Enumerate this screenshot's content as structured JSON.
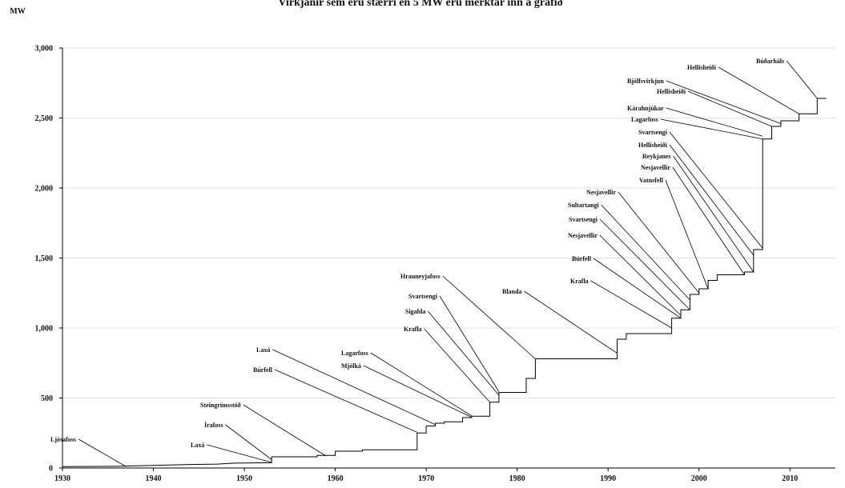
{
  "chart_data": {
    "type": "line",
    "title": "Virkjanir sem eru stærri en 5 MW eru merktar inn á grafið",
    "ylabel": "MW",
    "xlim": [
      1930,
      2015
    ],
    "ylim": [
      0,
      3000
    ],
    "x_ticks": [
      1930,
      1940,
      1950,
      1960,
      1970,
      1980,
      1990,
      2000,
      2010
    ],
    "y_ticks": [
      0,
      500,
      1000,
      1500,
      2000,
      2500,
      3000
    ],
    "y_tick_labels": [
      "0",
      "500",
      "1,000",
      "1,500",
      "2,000",
      "2,500",
      "3,000"
    ],
    "grid": "horizontal",
    "legend": "none",
    "series": [
      {
        "x": [
          1930,
          1936,
          1944,
          1947,
          1949,
          1953,
          1953,
          1958,
          1958,
          1960,
          1960,
          1963,
          1963,
          1969,
          1969,
          1970,
          1970,
          1971,
          1971,
          1972,
          1972,
          1974,
          1974,
          1975,
          1975,
          1977,
          1977,
          1978,
          1978,
          1981,
          1981,
          1982,
          1982,
          1991,
          1991,
          1992,
          1992,
          1997,
          1997,
          1998,
          1998,
          1999,
          1999,
          2000,
          2000,
          2001,
          2001,
          2002,
          2002,
          2005,
          2005,
          2006,
          2006,
          2007,
          2007,
          2008,
          2008,
          2009,
          2009,
          2011,
          2011,
          2013,
          2013,
          2014
        ],
        "y": [
          10,
          12,
          25,
          28,
          35,
          38,
          80,
          80,
          90,
          90,
          120,
          120,
          130,
          130,
          250,
          250,
          300,
          300,
          320,
          320,
          330,
          330,
          360,
          360,
          370,
          370,
          470,
          470,
          540,
          540,
          640,
          640,
          780,
          780,
          920,
          920,
          960,
          960,
          1070,
          1070,
          1130,
          1130,
          1240,
          1240,
          1280,
          1280,
          1340,
          1340,
          1380,
          1380,
          1400,
          1400,
          1560,
          1560,
          2350,
          2350,
          2440,
          2440,
          2480,
          2480,
          2530,
          2530,
          2640,
          2640
        ]
      }
    ],
    "annotations": [
      {
        "label": "Ljósafoss",
        "x": 1937,
        "y": 10
      },
      {
        "label": "Laxá",
        "x": 1953,
        "y": 40
      },
      {
        "label": "Írafoss",
        "x": 1953,
        "y": 60
      },
      {
        "label": "Steingrímsstöð",
        "x": 1959,
        "y": 85
      },
      {
        "label": "Búrfell",
        "x": 1969,
        "y": 255
      },
      {
        "label": "Laxá",
        "x": 1971,
        "y": 310
      },
      {
        "label": "Mjólká",
        "x": 1975,
        "y": 362
      },
      {
        "label": "Lagarfoss",
        "x": 1975,
        "y": 372
      },
      {
        "label": "Krafla",
        "x": 1977,
        "y": 470
      },
      {
        "label": "Sigalda",
        "x": 1978,
        "y": 520
      },
      {
        "label": "Svartsengi",
        "x": 1978,
        "y": 545
      },
      {
        "label": "Hrauneyjafoss",
        "x": 1982,
        "y": 780
      },
      {
        "label": "Blanda",
        "x": 1991,
        "y": 820
      },
      {
        "label": "Krafla",
        "x": 1997,
        "y": 1000
      },
      {
        "label": "Búrfell",
        "x": 1998,
        "y": 1070
      },
      {
        "label": "Nesjavellir",
        "x": 1998,
        "y": 1090
      },
      {
        "label": "Svartsengi",
        "x": 1999,
        "y": 1130
      },
      {
        "label": "Sultartangi",
        "x": 1999,
        "y": 1200
      },
      {
        "label": "Nesjavellir",
        "x": 2000,
        "y": 1250
      },
      {
        "label": "Vatnsfell",
        "x": 2001,
        "y": 1280
      },
      {
        "label": "Nesjavellir",
        "x": 2005,
        "y": 1380
      },
      {
        "label": "Reykjanes",
        "x": 2006,
        "y": 1400
      },
      {
        "label": "Hellisheiði",
        "x": 2006,
        "y": 1520
      },
      {
        "label": "Svartsengi",
        "x": 2007,
        "y": 1570
      },
      {
        "label": "Lagarfoss",
        "x": 2007,
        "y": 2350
      },
      {
        "label": "Kárahnjúkar",
        "x": 2007,
        "y": 2370
      },
      {
        "label": "Hellisheiði",
        "x": 2008,
        "y": 2440
      },
      {
        "label": "Hellisheiði",
        "x": 2011,
        "y": 2530
      },
      {
        "label": "Bjólfsvirkjun",
        "x": 2009,
        "y": 2460
      },
      {
        "label": "Búðarháls",
        "x": 2013,
        "y": 2640
      }
    ]
  }
}
